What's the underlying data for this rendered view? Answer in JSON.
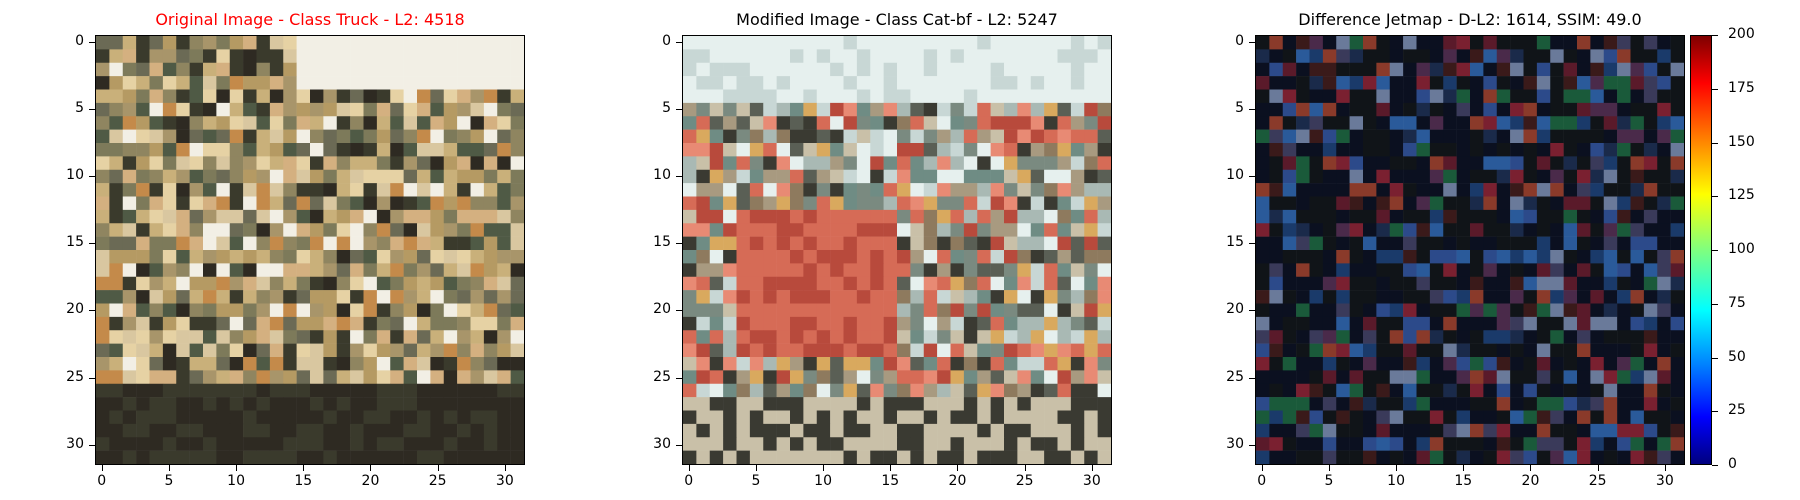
{
  "panels": [
    {
      "title": "Original Image - Class Truck - L2: 4518",
      "title_color": "#ff0000",
      "image_name": "truck-image",
      "palette": [
        "#c9b07a",
        "#b59a63",
        "#d9c7a0",
        "#7d7a5a",
        "#4f5a45",
        "#3a3a2c",
        "#e6d2a4",
        "#8f8560",
        "#a8956a",
        "#f2efe5",
        "#c48a4a",
        "#2e2a22",
        "#6b6a55",
        "#d4b080"
      ]
    },
    {
      "title": "Modified Image - Class Cat-bf - L2: 5247",
      "title_color": "#000000",
      "image_name": "modified-truck-image",
      "palette": [
        "#c8d7d5",
        "#a9b9b4",
        "#d66b56",
        "#b84a3c",
        "#7a8a80",
        "#d9a95e",
        "#e6f0ee",
        "#5a5f55",
        "#8e7a5e",
        "#c9c0a8",
        "#3a3a32",
        "#e88a74",
        "#6f8c84",
        "#a89a80"
      ]
    },
    {
      "title": "Difference Jetmap - D-L2: 1614, SSIM: 49.0",
      "title_color": "#000000",
      "image_name": "difference-jetmap",
      "palette": [
        "#0b1020",
        "#1a2a4a",
        "#2c4a8a",
        "#3a1a1a",
        "#5a1a2a",
        "#7a2030",
        "#3a3a5a",
        "#6a7a9a",
        "#1a3a6a",
        "#2a5a9a",
        "#8a3a2a",
        "#1a5a3a",
        "#4a2a4a",
        "#101418"
      ]
    }
  ],
  "axis": {
    "y_ticks": [
      "0",
      "5",
      "10",
      "15",
      "20",
      "25",
      "30"
    ],
    "x_ticks": [
      "0",
      "5",
      "10",
      "15",
      "20",
      "25",
      "30"
    ]
  },
  "colorbar": {
    "name": "jet-colorbar",
    "ticks": [
      "0",
      "25",
      "50",
      "75",
      "100",
      "125",
      "150",
      "175",
      "200"
    ],
    "range": [
      0,
      200
    ]
  }
}
